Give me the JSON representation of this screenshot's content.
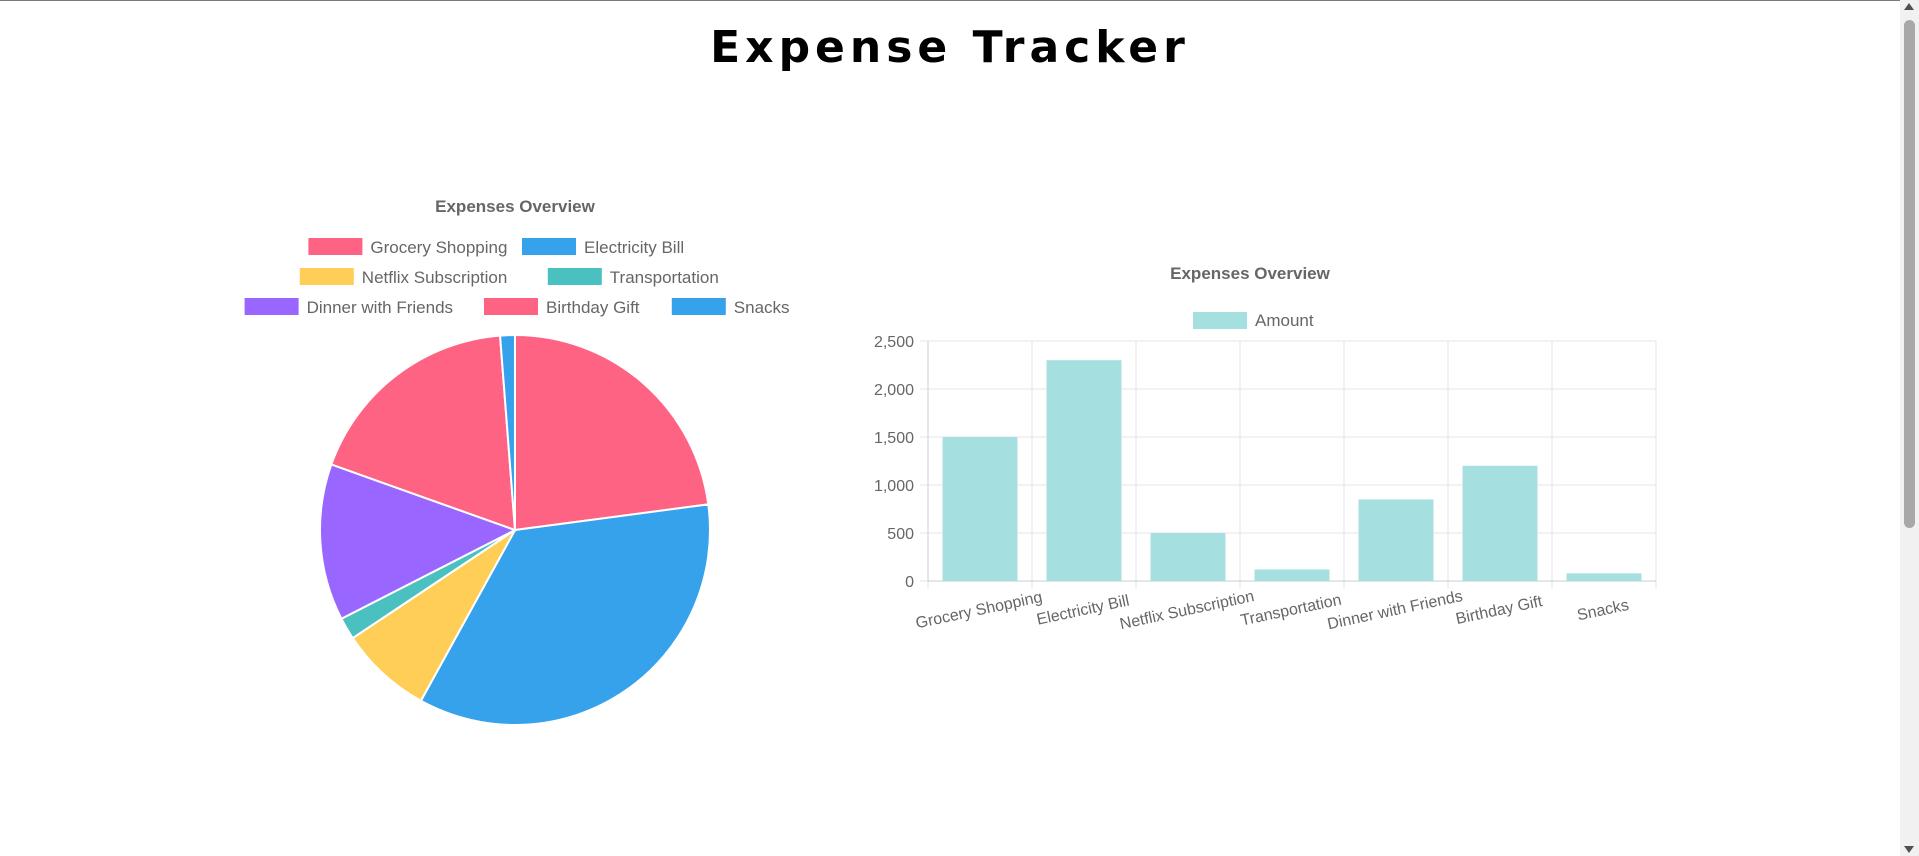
{
  "page": {
    "title": "Expense Tracker"
  },
  "chart_data": [
    {
      "type": "pie",
      "title": "Expenses Overview",
      "categories": [
        "Grocery Shopping",
        "Electricity Bill",
        "Netflix Subscription",
        "Transportation",
        "Dinner with Friends",
        "Birthday Gift",
        "Snacks"
      ],
      "values": [
        1500,
        2300,
        500,
        120,
        850,
        1200,
        80
      ],
      "colors": [
        "#ff6384",
        "#36a2eb",
        "#ffce56",
        "#4bc0c0",
        "#9966ff",
        "#ff6384",
        "#36a2eb"
      ],
      "legend": "top"
    },
    {
      "type": "bar",
      "title": "Expenses Overview",
      "categories": [
        "Grocery Shopping",
        "Electricity Bill",
        "Netflix Subscription",
        "Transportation",
        "Dinner with Friends",
        "Birthday Gift",
        "Snacks"
      ],
      "series": [
        {
          "name": "Amount",
          "values": [
            1500,
            2300,
            500,
            120,
            850,
            1200,
            80
          ]
        }
      ],
      "ylim": [
        0,
        2500
      ],
      "yticks": [
        0,
        500,
        1000,
        1500,
        2000,
        2500
      ],
      "ytick_labels": [
        "0",
        "500",
        "1,000",
        "1,500",
        "2,000",
        "2,500"
      ],
      "color": "#a6dfe0",
      "grid": true,
      "legend": "top"
    }
  ]
}
